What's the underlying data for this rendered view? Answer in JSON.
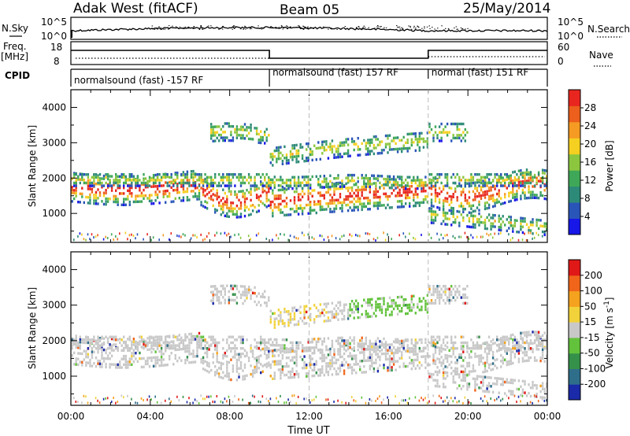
{
  "header": {
    "station": "Adak West (fitACF)",
    "beam": "Beam 05",
    "date": "25/May/2014"
  },
  "labels": {
    "nsky": "N.Sky",
    "nsearch": "N.Search",
    "freq": "Freq.",
    "freq_unit": "[MHz]",
    "nave": "Nave",
    "cpid": "CPID",
    "nsky_ticks": [
      "10^5",
      "10^0"
    ],
    "nsearch_ticks": [
      "10^5",
      "10^0"
    ],
    "freq_ticks": [
      "18",
      "8"
    ],
    "nave_ticks": [
      "60",
      "0"
    ]
  },
  "cpid_segments": [
    {
      "label": "normalsound (fast) -157 RF",
      "start": 0,
      "end": 10
    },
    {
      "label": "normalsound (fast) 157 RF",
      "start": 10,
      "end": 18
    },
    {
      "label": "normal (fast) 151 RF",
      "start": 18,
      "end": 24
    }
  ],
  "chart_data": [
    {
      "type": "heatmap",
      "name": "power-panel",
      "ylabel": "Slant Range [km]",
      "yticks": [
        "1000",
        "2000",
        "3000",
        "4000"
      ],
      "ylim": [
        180,
        4500
      ],
      "xlim": [
        0,
        24
      ],
      "colorbar": {
        "label": "Power [dB]",
        "ticks": [
          "28",
          "24",
          "20",
          "16",
          "12",
          "8",
          "4"
        ],
        "range": [
          0,
          30
        ],
        "colors": [
          "#1717e8",
          "#2a55b8",
          "#2e8a78",
          "#3fa858",
          "#8cc63f",
          "#f5d020",
          "#f59a23",
          "#ec5f1c",
          "#e8261f"
        ]
      }
    },
    {
      "type": "heatmap",
      "name": "velocity-panel",
      "ylabel": "Slant Range [km]",
      "yticks": [
        "1000",
        "2000",
        "3000",
        "4000"
      ],
      "ylim": [
        180,
        4500
      ],
      "xlim": [
        0,
        24
      ],
      "xlabel": "Time UT",
      "xticks": [
        "00:00",
        "04:00",
        "08:00",
        "12:00",
        "16:00",
        "20:00",
        "00:00"
      ],
      "colorbar": {
        "label": "Velocity [m s^-1]",
        "ticks": [
          "200",
          "100",
          "50",
          "15",
          "-15",
          "-50",
          "-100",
          "-200"
        ],
        "colors": [
          "#1a2aa8",
          "#2f6e8a",
          "#35904a",
          "#62c23c",
          "#c8c8c8",
          "#f2d23a",
          "#f5a21f",
          "#f0651a",
          "#e01818"
        ]
      }
    }
  ]
}
